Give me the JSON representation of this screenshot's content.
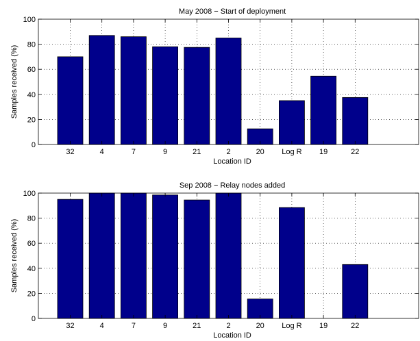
{
  "chart_data": [
    {
      "type": "bar",
      "title": "May 2008 − Start of deployment",
      "xlabel": "Location ID",
      "ylabel": "Samples received (%)",
      "categories": [
        "32",
        "4",
        "7",
        "9",
        "21",
        "2",
        "20",
        "Log R",
        "19",
        "22"
      ],
      "values": [
        70,
        87,
        86,
        78,
        77.5,
        85,
        12.5,
        35,
        54.5,
        37.5
      ],
      "ylim": [
        0,
        100
      ],
      "yticks": [
        "0",
        "20",
        "40",
        "60",
        "80",
        "100"
      ],
      "grid": true,
      "bar_color": "#00008b"
    },
    {
      "type": "bar",
      "title": "Sep 2008 − Relay nodes added",
      "xlabel": "Location ID",
      "ylabel": "Samples received (%)",
      "categories": [
        "32",
        "4",
        "7",
        "9",
        "21",
        "2",
        "20",
        "Log R",
        "19",
        "22"
      ],
      "values": [
        95,
        100,
        100,
        98.5,
        94.5,
        100,
        15.5,
        88.5,
        0,
        43
      ],
      "ylim": [
        0,
        100
      ],
      "yticks": [
        "0",
        "20",
        "40",
        "60",
        "80",
        "100"
      ],
      "grid": true,
      "bar_color": "#00008b"
    }
  ]
}
